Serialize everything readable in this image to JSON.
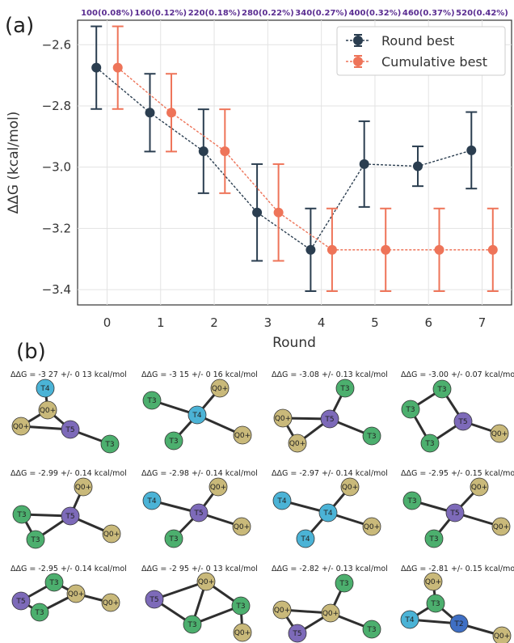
{
  "figure": {
    "panel_a_label": "(a)",
    "panel_b_label": "(b)",
    "colors": {
      "round_best": "#2b3e50",
      "cumulative_best": "#ee7459",
      "T3": "#4caf6e",
      "T4": "#4bb3d6",
      "T5": "#7d6ab9",
      "T2": "#3f6fc4",
      "Q0+": "#c9b97a"
    }
  },
  "chart_data": {
    "type": "line",
    "title": "",
    "xlabel": "Round",
    "ylabel": "ΔΔG (kcal/mol)",
    "x": [
      0,
      1,
      2,
      3,
      4,
      5,
      6,
      7
    ],
    "xlim": [
      -0.55,
      7.55
    ],
    "ylim": [
      -3.45,
      -2.52
    ],
    "yticks": [
      -2.6,
      -2.8,
      -3.0,
      -3.2,
      -3.4
    ],
    "ytick_labels": [
      "−2.6",
      "−2.8",
      "−3.0",
      "−3.2",
      "−3.4"
    ],
    "xtick_labels": [
      "0",
      "1",
      "2",
      "3",
      "4",
      "5",
      "6",
      "7"
    ],
    "top_labels": [
      "100(0.08%)",
      "160(0.12%)",
      "220(0.18%)",
      "280(0.22%)",
      "340(0.27%)",
      "400(0.32%)",
      "460(0.37%)",
      "520(0.42%)"
    ],
    "grid": true,
    "legend_position": "top-right",
    "series": [
      {
        "name": "Round best",
        "x_offset": -0.2,
        "values": [
          -2.675,
          -2.822,
          -2.948,
          -3.148,
          -3.27,
          -2.99,
          -2.997,
          -2.945
        ],
        "errors": [
          0.135,
          0.127,
          0.137,
          0.158,
          0.135,
          0.14,
          0.065,
          0.125
        ]
      },
      {
        "name": "Cumulative best",
        "x_offset": 0.2,
        "values": [
          -2.675,
          -2.822,
          -2.948,
          -3.148,
          -3.27,
          -3.27,
          -3.27,
          -3.27
        ],
        "errors": [
          0.135,
          0.127,
          0.137,
          0.158,
          0.135,
          0.135,
          0.135,
          0.135
        ]
      }
    ]
  },
  "graphs": [
    {
      "title": "ΔΔG = -3 27 +/- 0 13 kcal/mol",
      "nodes": [
        {
          "label": "T4",
          "type": "T4"
        },
        {
          "label": "Q0+",
          "type": "Q0+"
        },
        {
          "label": "Q0+",
          "type": "Q0+"
        },
        {
          "label": "T5",
          "type": "T5"
        },
        {
          "label": "T3",
          "type": "T3"
        }
      ]
    },
    {
      "title": "ΔΔG = -3 15 +/- 0 16 kcal/mol",
      "nodes": [
        {
          "label": "T3",
          "type": "T3"
        },
        {
          "label": "Q0+",
          "type": "Q0+"
        },
        {
          "label": "T4",
          "type": "T4"
        },
        {
          "label": "T3",
          "type": "T3"
        },
        {
          "label": "Q0+",
          "type": "Q0+"
        }
      ]
    },
    {
      "title": "ΔΔG = -3.08 +/- 0.13 kcal/mol",
      "nodes": [
        {
          "label": "T3",
          "type": "T3"
        },
        {
          "label": "Q0+",
          "type": "Q0+"
        },
        {
          "label": "T5",
          "type": "T5"
        },
        {
          "label": "Q0+",
          "type": "Q0+"
        },
        {
          "label": "T3",
          "type": "T3"
        }
      ]
    },
    {
      "title": "ΔΔG = -3.00 +/- 0.07 kcal/mol",
      "nodes": [
        {
          "label": "T3",
          "type": "T3"
        },
        {
          "label": "T3",
          "type": "T3"
        },
        {
          "label": "T5",
          "type": "T5"
        },
        {
          "label": "T3",
          "type": "T3"
        },
        {
          "label": "Q0+",
          "type": "Q0+"
        }
      ]
    },
    {
      "title": "ΔΔG = -2.99 +/- 0.14 kcal/mol",
      "nodes": [
        {
          "label": "Q0+",
          "type": "Q0+"
        },
        {
          "label": "T3",
          "type": "T3"
        },
        {
          "label": "T5",
          "type": "T5"
        },
        {
          "label": "T3",
          "type": "T3"
        },
        {
          "label": "Q0+",
          "type": "Q0+"
        }
      ]
    },
    {
      "title": "ΔΔG = -2.98 +/- 0.14 kcal/mol",
      "nodes": [
        {
          "label": "Q0+",
          "type": "Q0+"
        },
        {
          "label": "T4",
          "type": "T4"
        },
        {
          "label": "T5",
          "type": "T5"
        },
        {
          "label": "T3",
          "type": "T3"
        },
        {
          "label": "Q0+",
          "type": "Q0+"
        }
      ]
    },
    {
      "title": "ΔΔG = -2.97 +/- 0.14 kcal/mol",
      "nodes": [
        {
          "label": "Q0+",
          "type": "Q0+"
        },
        {
          "label": "T4",
          "type": "T4"
        },
        {
          "label": "T4",
          "type": "T4"
        },
        {
          "label": "T4",
          "type": "T4"
        },
        {
          "label": "Q0+",
          "type": "Q0+"
        }
      ]
    },
    {
      "title": "ΔΔG = -2.95 +/- 0.15 kcal/mol",
      "nodes": [
        {
          "label": "Q0+",
          "type": "Q0+"
        },
        {
          "label": "T3",
          "type": "T3"
        },
        {
          "label": "T5",
          "type": "T5"
        },
        {
          "label": "T3",
          "type": "T3"
        },
        {
          "label": "Q0+",
          "type": "Q0+"
        }
      ]
    },
    {
      "title": "ΔΔG = -2.95 +/- 0.14 kcal/mol",
      "nodes": [
        {
          "label": "T3",
          "type": "T3"
        },
        {
          "label": "T5",
          "type": "T5"
        },
        {
          "label": "Q0+",
          "type": "Q0+"
        },
        {
          "label": "T3",
          "type": "T3"
        },
        {
          "label": "Q0+",
          "type": "Q0+"
        }
      ]
    },
    {
      "title": "ΔΔG = -2 95 +/- 0 13 kcal/mol",
      "nodes": [
        {
          "label": "Q0+",
          "type": "Q0+"
        },
        {
          "label": "T5",
          "type": "T5"
        },
        {
          "label": "T3",
          "type": "T3"
        },
        {
          "label": "T3",
          "type": "T3"
        },
        {
          "label": "Q0+",
          "type": "Q0+"
        }
      ]
    },
    {
      "title": "ΔΔG = -2.82 +/- 0.13 kcal/mol",
      "nodes": [
        {
          "label": "T3",
          "type": "T3"
        },
        {
          "label": "Q0+",
          "type": "Q0+"
        },
        {
          "label": "Q0+",
          "type": "Q0+"
        },
        {
          "label": "T3",
          "type": "T3"
        },
        {
          "label": "T5",
          "type": "T5"
        }
      ]
    },
    {
      "title": "ΔΔG = -2.81 +/- 0.15 kcal/mol",
      "nodes": [
        {
          "label": "Q0+",
          "type": "Q0+"
        },
        {
          "label": "T3",
          "type": "T3"
        },
        {
          "label": "T4",
          "type": "T4"
        },
        {
          "label": "T2",
          "type": "T2"
        },
        {
          "label": "Q0+",
          "type": "Q0+"
        }
      ]
    }
  ]
}
